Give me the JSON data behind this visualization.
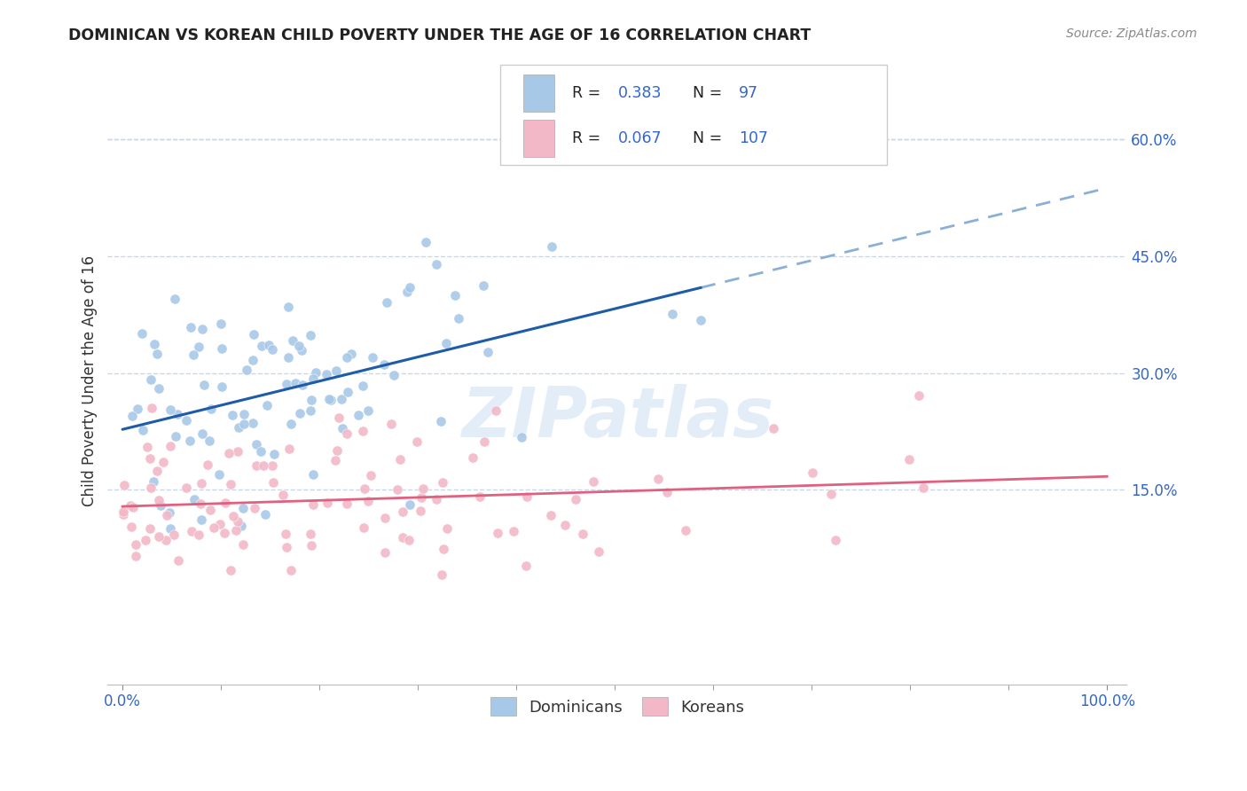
{
  "title": "DOMINICAN VS KOREAN CHILD POVERTY UNDER THE AGE OF 16 CORRELATION CHART",
  "source": "Source: ZipAtlas.com",
  "ylabel": "Child Poverty Under the Age of 16",
  "dominicans_R": 0.383,
  "dominicans_N": 97,
  "koreans_R": 0.067,
  "koreans_N": 107,
  "blue_scatter_color": "#a8c8e8",
  "pink_scatter_color": "#f2b8c8",
  "blue_line_color": "#1e5ca8",
  "blue_dash_color": "#8ab0d8",
  "pink_line_color": "#e06080",
  "watermark": "ZIPatlas",
  "background_color": "#ffffff",
  "grid_color": "#c8d8ec",
  "title_color": "#222222",
  "axis_tick_color": "#3366cc",
  "legend_label_color": "#222222",
  "legend_value_color": "#3366cc",
  "seed": 42,
  "xlim_low": -0.015,
  "xlim_high": 1.02,
  "ylim_low": -0.1,
  "ylim_high": 0.68,
  "ytick_vals": [
    0.15,
    0.3,
    0.45,
    0.6
  ],
  "ytick_labels": [
    "15.0%",
    "30.0%",
    "45.0%",
    "60.0%"
  ],
  "xtick_vals": [
    0.0,
    1.0
  ],
  "xtick_labels": [
    "0.0%",
    "100.0%"
  ]
}
